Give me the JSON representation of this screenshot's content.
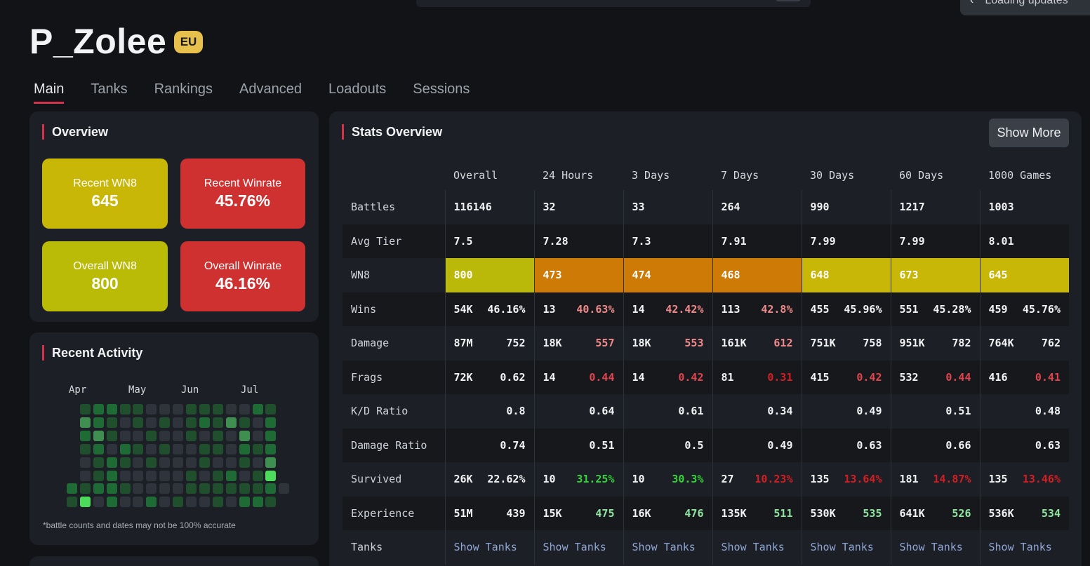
{
  "toast": {
    "text": "Loading updates"
  },
  "player": {
    "name": "P_Zolee",
    "region": "EU"
  },
  "tabs": [
    {
      "label": "Main",
      "active": true
    },
    {
      "label": "Tanks",
      "active": false
    },
    {
      "label": "Rankings",
      "active": false
    },
    {
      "label": "Advanced",
      "active": false
    },
    {
      "label": "Loadouts",
      "active": false
    },
    {
      "label": "Sessions",
      "active": false
    }
  ],
  "overview": {
    "title": "Overview",
    "recent_wn8": {
      "label": "Recent WN8",
      "value": "645"
    },
    "recent_winrate": {
      "label": "Recent Winrate",
      "value": "45.76%"
    },
    "overall_wn8": {
      "label": "Overall WN8",
      "value": "800"
    },
    "overall_winrate": {
      "label": "Overall Winrate",
      "value": "46.16%"
    }
  },
  "activity": {
    "title": "Recent Activity",
    "months": [
      "Apr",
      "May",
      "Jun",
      "Jul"
    ],
    "note": "*battle counts and dates may not be 100% accurate",
    "grid": [
      [
        0,
        0,
        2,
        3,
        3,
        2,
        2,
        1,
        1,
        1,
        2,
        2,
        2,
        1,
        1,
        3,
        2,
        0
      ],
      [
        0,
        0,
        4,
        3,
        2,
        1,
        2,
        1,
        2,
        1,
        2,
        3,
        2,
        4,
        2,
        1,
        3,
        0
      ],
      [
        0,
        0,
        3,
        4,
        2,
        1,
        1,
        2,
        1,
        1,
        2,
        1,
        2,
        1,
        4,
        1,
        3,
        0
      ],
      [
        0,
        0,
        2,
        3,
        1,
        3,
        2,
        1,
        2,
        1,
        1,
        2,
        2,
        1,
        3,
        2,
        3,
        0
      ],
      [
        0,
        0,
        1,
        2,
        3,
        2,
        1,
        2,
        1,
        1,
        1,
        2,
        1,
        1,
        2,
        1,
        4,
        0
      ],
      [
        0,
        0,
        1,
        2,
        3,
        1,
        1,
        1,
        1,
        1,
        2,
        1,
        2,
        3,
        1,
        2,
        5,
        0
      ],
      [
        0,
        3,
        2,
        3,
        3,
        2,
        1,
        1,
        1,
        1,
        2,
        2,
        2,
        2,
        2,
        2,
        3,
        1
      ],
      [
        0,
        2,
        5,
        1,
        3,
        1,
        1,
        3,
        1,
        2,
        1,
        1,
        2,
        1,
        3,
        3,
        2,
        0
      ]
    ],
    "colors": [
      "transparent",
      "#2f333b",
      "#1f4f2d",
      "#1f6b35",
      "#3f8f50",
      "#4ddb5b"
    ]
  },
  "stats": {
    "title": "Stats Overview",
    "show_more": "Show More",
    "columns": [
      "Overall",
      "24 Hours",
      "3 Days",
      "7 Days",
      "30 Days",
      "60 Days",
      "1000 Games"
    ],
    "battles": [
      "116146",
      "32",
      "33",
      "264",
      "990",
      "1217",
      "1003"
    ],
    "avg_tier": [
      "7.5",
      "7.28",
      "7.3",
      "7.91",
      "7.99",
      "7.99",
      "8.01"
    ],
    "wn8": [
      {
        "value": "800",
        "color": "#bab90a"
      },
      {
        "value": "473",
        "color": "#cd7a06"
      },
      {
        "value": "474",
        "color": "#cd7a06"
      },
      {
        "value": "468",
        "color": "#cd7a06"
      },
      {
        "value": "648",
        "color": "#c9b708"
      },
      {
        "value": "673",
        "color": "#c9b708"
      },
      {
        "value": "645",
        "color": "#c9b708"
      }
    ],
    "wins": [
      {
        "count": "54K",
        "pct": "46.16%",
        "tone": "c-white"
      },
      {
        "count": "13",
        "pct": "40.63%",
        "tone": "c-pink"
      },
      {
        "count": "14",
        "pct": "42.42%",
        "tone": "c-pink"
      },
      {
        "count": "113",
        "pct": "42.8%",
        "tone": "c-pink"
      },
      {
        "count": "455",
        "pct": "45.96%",
        "tone": "c-white"
      },
      {
        "count": "551",
        "pct": "45.28%",
        "tone": "c-white"
      },
      {
        "count": "459",
        "pct": "45.76%",
        "tone": "c-white"
      }
    ],
    "damage": [
      {
        "total": "87M",
        "avg": "752",
        "tone": "c-white"
      },
      {
        "total": "18K",
        "avg": "557",
        "tone": "c-pink"
      },
      {
        "total": "18K",
        "avg": "553",
        "tone": "c-pink"
      },
      {
        "total": "161K",
        "avg": "612",
        "tone": "c-pink"
      },
      {
        "total": "751K",
        "avg": "758",
        "tone": "c-white"
      },
      {
        "total": "951K",
        "avg": "782",
        "tone": "c-white"
      },
      {
        "total": "764K",
        "avg": "762",
        "tone": "c-white"
      }
    ],
    "frags": [
      {
        "total": "72K",
        "avg": "0.62",
        "tone": "c-white"
      },
      {
        "total": "14",
        "avg": "0.44",
        "tone": "c-red"
      },
      {
        "total": "14",
        "avg": "0.42",
        "tone": "c-red"
      },
      {
        "total": "81",
        "avg": "0.31",
        "tone": "c-darkred"
      },
      {
        "total": "415",
        "avg": "0.42",
        "tone": "c-red"
      },
      {
        "total": "532",
        "avg": "0.44",
        "tone": "c-red"
      },
      {
        "total": "416",
        "avg": "0.41",
        "tone": "c-red"
      }
    ],
    "kd": [
      {
        "value": "0.8",
        "tone": "c-white"
      },
      {
        "value": "0.64",
        "tone": "c-pink"
      },
      {
        "value": "0.61",
        "tone": "c-pink"
      },
      {
        "value": "0.34",
        "tone": "c-darkred"
      },
      {
        "value": "0.49",
        "tone": "c-red"
      },
      {
        "value": "0.51",
        "tone": "c-red"
      },
      {
        "value": "0.48",
        "tone": "c-red"
      }
    ],
    "damage_ratio": [
      {
        "value": "0.74",
        "tone": "c-white"
      },
      {
        "value": "0.51",
        "tone": "c-red"
      },
      {
        "value": "0.5",
        "tone": "c-red"
      },
      {
        "value": "0.49",
        "tone": "c-red"
      },
      {
        "value": "0.63",
        "tone": "c-white"
      },
      {
        "value": "0.66",
        "tone": "c-white"
      },
      {
        "value": "0.63",
        "tone": "c-white"
      }
    ],
    "survived": [
      {
        "count": "26K",
        "pct": "22.62%",
        "tone": "c-white"
      },
      {
        "count": "10",
        "pct": "31.25%",
        "tone": "c-green"
      },
      {
        "count": "10",
        "pct": "30.3%",
        "tone": "c-green"
      },
      {
        "count": "27",
        "pct": "10.23%",
        "tone": "c-darkred"
      },
      {
        "count": "135",
        "pct": "13.64%",
        "tone": "c-darkred"
      },
      {
        "count": "181",
        "pct": "14.87%",
        "tone": "c-darkred"
      },
      {
        "count": "135",
        "pct": "13.46%",
        "tone": "c-darkred"
      }
    ],
    "experience": [
      {
        "total": "51M",
        "avg": "439",
        "tone": "c-white"
      },
      {
        "total": "15K",
        "avg": "475",
        "tone": "c-lgreen"
      },
      {
        "total": "16K",
        "avg": "476",
        "tone": "c-lgreen"
      },
      {
        "total": "135K",
        "avg": "511",
        "tone": "c-lgreen"
      },
      {
        "total": "530K",
        "avg": "535",
        "tone": "c-lgreen"
      },
      {
        "total": "641K",
        "avg": "526",
        "tone": "c-lgreen"
      },
      {
        "total": "536K",
        "avg": "534",
        "tone": "c-lgreen"
      }
    ],
    "row_labels": {
      "battles": "Battles",
      "avg_tier": "Avg Tier",
      "wn8": "WN8",
      "wins": "Wins",
      "damage": "Damage",
      "frags": "Frags",
      "kd": "K/D Ratio",
      "damage_ratio": "Damage Ratio",
      "survived": "Survived",
      "experience": "Experience",
      "tanks": "Tanks"
    },
    "show_tanks": "Show Tanks"
  }
}
